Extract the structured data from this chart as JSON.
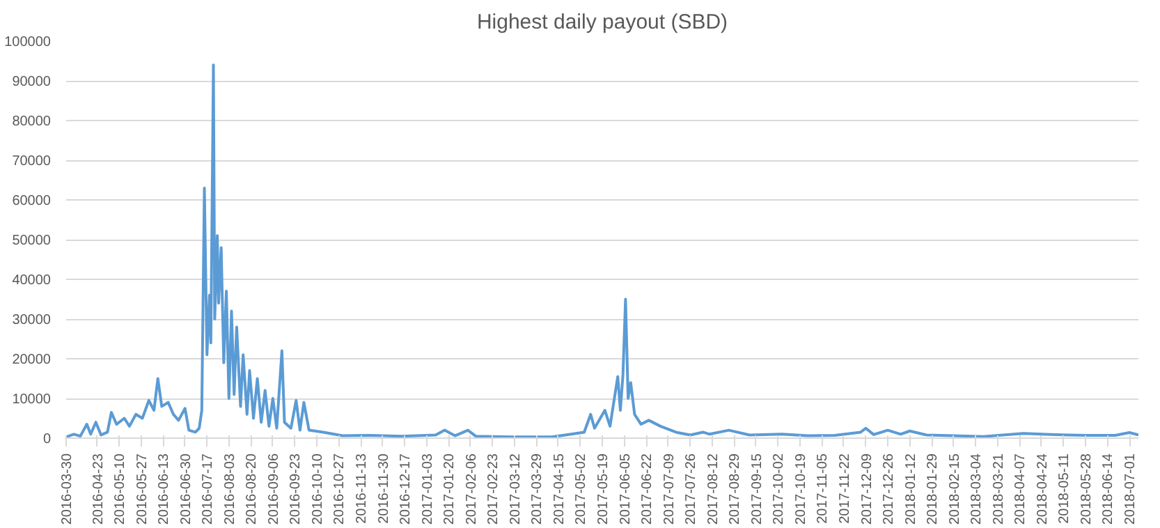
{
  "chart_data": {
    "type": "line",
    "title": "Highest daily payout (SBD)",
    "x": [
      "2016-03-30",
      "2016-04-05",
      "2016-04-10",
      "2016-04-15",
      "2016-04-18",
      "2016-04-22",
      "2016-04-26",
      "2016-05-01",
      "2016-05-04",
      "2016-05-08",
      "2016-05-14",
      "2016-05-18",
      "2016-05-23",
      "2016-05-28",
      "2016-06-02",
      "2016-06-06",
      "2016-06-09",
      "2016-06-12",
      "2016-06-17",
      "2016-06-21",
      "2016-06-25",
      "2016-06-30",
      "2016-07-03",
      "2016-07-08",
      "2016-07-11",
      "2016-07-13",
      "2016-07-15",
      "2016-07-17",
      "2016-07-19",
      "2016-07-20",
      "2016-07-22",
      "2016-07-23",
      "2016-07-25",
      "2016-07-26",
      "2016-07-28",
      "2016-07-30",
      "2016-08-01",
      "2016-08-03",
      "2016-08-05",
      "2016-08-07",
      "2016-08-09",
      "2016-08-12",
      "2016-08-14",
      "2016-08-17",
      "2016-08-19",
      "2016-08-22",
      "2016-08-25",
      "2016-08-28",
      "2016-08-31",
      "2016-09-03",
      "2016-09-06",
      "2016-09-09",
      "2016-09-13",
      "2016-09-15",
      "2016-09-20",
      "2016-09-24",
      "2016-09-27",
      "2016-09-30",
      "2016-10-04",
      "2016-10-15",
      "2016-10-30",
      "2016-11-20",
      "2016-12-15",
      "2017-01-10",
      "2017-01-17",
      "2017-01-25",
      "2017-02-04",
      "2017-02-10",
      "2017-03-10",
      "2017-04-10",
      "2017-04-25",
      "2017-05-05",
      "2017-05-10",
      "2017-05-13",
      "2017-05-21",
      "2017-05-25",
      "2017-05-31",
      "2017-06-02",
      "2017-06-04",
      "2017-06-06",
      "2017-06-08",
      "2017-06-10",
      "2017-06-13",
      "2017-06-18",
      "2017-06-24",
      "2017-07-03",
      "2017-07-15",
      "2017-07-26",
      "2017-08-05",
      "2017-08-10",
      "2017-08-25",
      "2017-09-10",
      "2017-10-05",
      "2017-10-25",
      "2017-11-15",
      "2017-12-05",
      "2017-12-09",
      "2017-12-15",
      "2017-12-26",
      "2018-01-05",
      "2018-01-12",
      "2018-01-25",
      "2018-02-15",
      "2018-03-10",
      "2018-03-25",
      "2018-04-10",
      "2018-05-01",
      "2018-05-28",
      "2018-06-20",
      "2018-07-01",
      "2018-07-08"
    ],
    "series": [
      {
        "color": "#5b9bd5",
        "values": [
          300,
          1000,
          500,
          3500,
          1000,
          4000,
          800,
          1500,
          6500,
          3500,
          5000,
          3000,
          6000,
          5000,
          9500,
          7000,
          15000,
          8000,
          9000,
          6000,
          4500,
          7500,
          2000,
          1500,
          2500,
          7000,
          63000,
          21000,
          36000,
          24000,
          94000,
          30000,
          51000,
          34000,
          48000,
          19000,
          37000,
          10000,
          32000,
          11000,
          28000,
          8000,
          21000,
          6000,
          17000,
          5000,
          15000,
          4000,
          12000,
          3000,
          10000,
          2500,
          22000,
          4000,
          2500,
          9500,
          2000,
          9000,
          2000,
          1500,
          600,
          700,
          500,
          800,
          2000,
          600,
          2000,
          500,
          300,
          300,
          1000,
          1500,
          6000,
          2500,
          7000,
          3000,
          15500,
          7000,
          16000,
          35000,
          10000,
          14000,
          6000,
          3500,
          4500,
          3000,
          1500,
          800,
          1500,
          1000,
          2000,
          800,
          1000,
          600,
          700,
          1500,
          2500,
          900,
          2000,
          1000,
          1800,
          800,
          600,
          400,
          800,
          1200,
          900,
          700,
          700,
          1400,
          800
        ]
      }
    ],
    "xlim": [
      "2016-03-30",
      "2018-07-08"
    ],
    "xticks": [
      "2016-03-30",
      "2016-04-23",
      "2016-05-10",
      "2016-05-27",
      "2016-06-13",
      "2016-06-30",
      "2016-07-17",
      "2016-08-03",
      "2016-08-20",
      "2016-09-06",
      "2016-09-23",
      "2016-10-10",
      "2016-10-27",
      "2016-11-13",
      "2016-11-30",
      "2016-12-17",
      "2017-01-03",
      "2017-01-20",
      "2017-02-06",
      "2017-02-23",
      "2017-03-12",
      "2017-03-29",
      "2017-04-15",
      "2017-05-02",
      "2017-05-19",
      "2017-06-05",
      "2017-06-22",
      "2017-07-09",
      "2017-07-26",
      "2017-08-12",
      "2017-08-29",
      "2017-09-15",
      "2017-10-02",
      "2017-10-19",
      "2017-11-05",
      "2017-11-22",
      "2017-12-09",
      "2017-12-26",
      "2018-01-12",
      "2018-01-29",
      "2018-02-15",
      "2018-03-04",
      "2018-03-21",
      "2018-04-07",
      "2018-04-24",
      "2018-05-11",
      "2018-05-28",
      "2018-06-14",
      "2018-07-01"
    ],
    "ylim": [
      0,
      100000
    ],
    "yticks": [
      0,
      10000,
      20000,
      30000,
      40000,
      50000,
      60000,
      70000,
      80000,
      90000,
      100000
    ],
    "grid": "y"
  }
}
